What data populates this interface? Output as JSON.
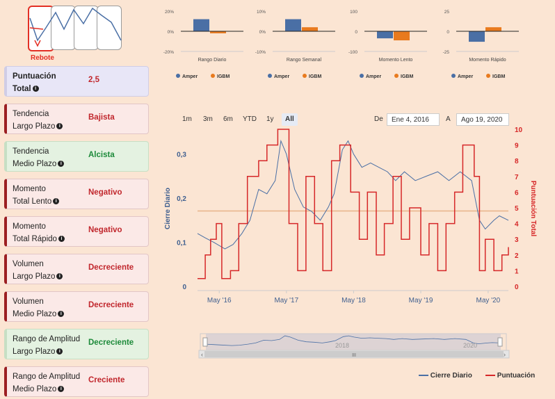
{
  "logo": {
    "label": "Rebote"
  },
  "cards": [
    {
      "line1": "Puntuación",
      "line2": "Total",
      "value": "2,5",
      "kind": "neu",
      "bold": true
    },
    {
      "line1": "Tendencia",
      "line2": "Largo Plazo",
      "value": "Bajista",
      "kind": "neg"
    },
    {
      "line1": "Tendencia",
      "line2": "Medio Plazo",
      "value": "Alcista",
      "kind": "pos"
    },
    {
      "line1": "Momento",
      "line2": "Total Lento",
      "value": "Negativo",
      "kind": "neg"
    },
    {
      "line1": "Momento",
      "line2": "Total Rápido",
      "value": "Negativo",
      "kind": "neg"
    },
    {
      "line1": "Volumen",
      "line2": "Largo Plazo",
      "value": "Decreciente",
      "kind": "neg"
    },
    {
      "line1": "Volumen",
      "line2": "Medio Plazo",
      "value": "Decreciente",
      "kind": "neg"
    },
    {
      "line1": "Rango de Amplitud",
      "line2": "Largo Plazo",
      "value": "Decreciente",
      "kind": "pos"
    },
    {
      "line1": "Rango de Amplitud",
      "line2": "Medio Plazo",
      "value": "Creciente",
      "kind": "neg"
    }
  ],
  "colors": {
    "amper": "#4a6fa5",
    "igbm": "#e87a1e",
    "cierre": "#4a6fa5",
    "puntuacion": "#d62728",
    "hline": "#e8b489"
  },
  "mini_charts_meta": {
    "legend": [
      "Amper",
      "IGBM"
    ]
  },
  "range_buttons": [
    "1m",
    "3m",
    "6m",
    "YTD",
    "1y",
    "All"
  ],
  "range_active": "All",
  "date_from_label": "De",
  "date_from": "Ene 4, 2016",
  "date_to_label": "A",
  "date_to": "Ago 19, 2020",
  "navigator": {
    "years": [
      "2018",
      "2020"
    ],
    "scroll_mid": "III"
  },
  "legend": {
    "cierre": "Cierre Diario",
    "puntuacion": "Puntuación"
  },
  "chart_data": [
    {
      "type": "bar",
      "title": "Rango Diario",
      "categories": [
        "Amper",
        "IGBM"
      ],
      "values": [
        12,
        -2
      ],
      "ylim": [
        -20,
        20
      ],
      "yticks": [
        "20%",
        "0%",
        "-20%"
      ]
    },
    {
      "type": "bar",
      "title": "Rango Semanal",
      "categories": [
        "Amper",
        "IGBM"
      ],
      "values": [
        6,
        2
      ],
      "ylim": [
        -10,
        10
      ],
      "yticks": [
        "10%",
        "0%",
        "-10%"
      ]
    },
    {
      "type": "bar",
      "title": "Momento Lento",
      "categories": [
        "Amper",
        "IGBM"
      ],
      "values": [
        -35,
        -45
      ],
      "ylim": [
        -100,
        100
      ],
      "yticks": [
        "100",
        "0",
        "-100"
      ]
    },
    {
      "type": "bar",
      "title": "Momento Rápido",
      "categories": [
        "Amper",
        "IGBM"
      ],
      "values": [
        -13,
        5
      ],
      "ylim": [
        -25,
        25
      ],
      "yticks": [
        "25",
        "0",
        "-25"
      ]
    },
    {
      "type": "line",
      "x_ticks": [
        "May '16",
        "May '17",
        "May '18",
        "May '19",
        "May '20"
      ],
      "ylabel": "Cierre Diario",
      "y2label": "Puntuación Total",
      "ylim": [
        0,
        0.35
      ],
      "y_ticks": [
        "0",
        "0,1",
        "0,2",
        "0,3"
      ],
      "y2lim": [
        0,
        10
      ],
      "y2_ticks": [
        "0",
        "1",
        "2",
        "3",
        "4",
        "5",
        "6",
        "7",
        "8",
        "9",
        "10"
      ],
      "reference_y2": 4.8,
      "series": [
        {
          "name": "Cierre Diario",
          "axis": "left",
          "points": [
            [
              "2016-01-04",
              0.12
            ],
            [
              "2016-02-15",
              0.11
            ],
            [
              "2016-04-01",
              0.1
            ],
            [
              "2016-06-01",
              0.085
            ],
            [
              "2016-07-15",
              0.095
            ],
            [
              "2016-09-01",
              0.12
            ],
            [
              "2016-10-15",
              0.15
            ],
            [
              "2016-12-01",
              0.22
            ],
            [
              "2017-01-15",
              0.21
            ],
            [
              "2017-03-01",
              0.24
            ],
            [
              "2017-04-01",
              0.33
            ],
            [
              "2017-05-01",
              0.3
            ],
            [
              "2017-06-15",
              0.22
            ],
            [
              "2017-08-01",
              0.18
            ],
            [
              "2017-09-15",
              0.17
            ],
            [
              "2017-11-01",
              0.15
            ],
            [
              "2017-12-15",
              0.18
            ],
            [
              "2018-01-15",
              0.21
            ],
            [
              "2018-03-01",
              0.31
            ],
            [
              "2018-04-01",
              0.33
            ],
            [
              "2018-05-01",
              0.3
            ],
            [
              "2018-06-15",
              0.27
            ],
            [
              "2018-08-01",
              0.28
            ],
            [
              "2018-09-15",
              0.27
            ],
            [
              "2018-11-01",
              0.26
            ],
            [
              "2018-12-15",
              0.24
            ],
            [
              "2019-02-01",
              0.26
            ],
            [
              "2019-04-01",
              0.24
            ],
            [
              "2019-06-01",
              0.25
            ],
            [
              "2019-08-01",
              0.26
            ],
            [
              "2019-10-01",
              0.24
            ],
            [
              "2019-12-01",
              0.26
            ],
            [
              "2020-02-01",
              0.24
            ],
            [
              "2020-03-15",
              0.15
            ],
            [
              "2020-04-15",
              0.13
            ],
            [
              "2020-06-01",
              0.15
            ],
            [
              "2020-07-01",
              0.16
            ],
            [
              "2020-08-19",
              0.15
            ]
          ]
        },
        {
          "name": "Puntuación",
          "axis": "right",
          "points": [
            [
              "2016-01-04",
              0.5
            ],
            [
              "2016-02-15",
              2
            ],
            [
              "2016-03-15",
              3
            ],
            [
              "2016-04-15",
              4
            ],
            [
              "2016-05-15",
              0.5
            ],
            [
              "2016-07-01",
              1
            ],
            [
              "2016-08-15",
              4
            ],
            [
              "2016-10-01",
              7
            ],
            [
              "2016-12-01",
              8
            ],
            [
              "2017-01-15",
              9
            ],
            [
              "2017-03-15",
              10
            ],
            [
              "2017-05-15",
              4
            ],
            [
              "2017-07-01",
              1
            ],
            [
              "2017-08-15",
              7
            ],
            [
              "2017-10-01",
              4
            ],
            [
              "2017-11-15",
              1
            ],
            [
              "2018-01-01",
              8
            ],
            [
              "2018-02-15",
              9
            ],
            [
              "2018-04-15",
              6
            ],
            [
              "2018-06-01",
              3
            ],
            [
              "2018-07-15",
              6
            ],
            [
              "2018-09-01",
              2
            ],
            [
              "2018-10-15",
              4
            ],
            [
              "2018-12-01",
              7
            ],
            [
              "2019-01-15",
              3
            ],
            [
              "2019-03-01",
              5
            ],
            [
              "2019-05-01",
              2
            ],
            [
              "2019-06-15",
              4
            ],
            [
              "2019-08-01",
              1
            ],
            [
              "2019-09-15",
              4
            ],
            [
              "2019-11-01",
              6
            ],
            [
              "2019-12-15",
              9
            ],
            [
              "2020-02-15",
              7
            ],
            [
              "2020-03-15",
              1
            ],
            [
              "2020-04-15",
              3
            ],
            [
              "2020-06-01",
              1
            ],
            [
              "2020-07-15",
              2
            ],
            [
              "2020-08-19",
              2.5
            ]
          ]
        }
      ]
    }
  ]
}
